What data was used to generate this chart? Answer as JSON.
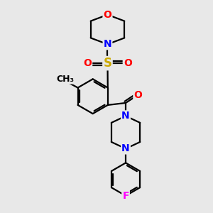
{
  "bg_color": "#e8e8e8",
  "atom_colors": {
    "C": "#000000",
    "N": "#0000ff",
    "O": "#ff0000",
    "S": "#ccaa00",
    "F": "#ff00ff"
  },
  "bond_color": "#000000",
  "bond_width": 1.6,
  "font_size_atom": 10,
  "figsize": [
    3.0,
    3.0
  ],
  "dpi": 100
}
